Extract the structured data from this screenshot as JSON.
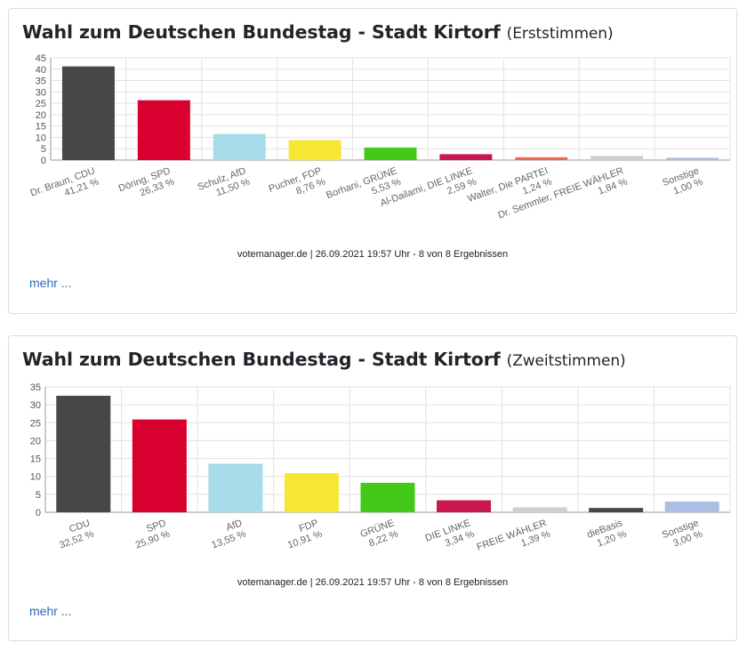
{
  "charts": [
    {
      "title_main": "Wahl zum Deutschen Bundestag - Stadt Kirtorf",
      "title_sub": "(Erststimmen)",
      "footer": "votemanager.de | 26.09.2021 19:57 Uhr - 8 von 8 Ergebnissen",
      "more": "mehr ...",
      "chart_data": {
        "type": "bar",
        "title": "Wahl zum Deutschen Bundestag - Stadt Kirtorf (Erststimmen)",
        "ylim": [
          0,
          45
        ],
        "yticks": [
          0,
          5,
          10,
          15,
          20,
          25,
          30,
          35,
          40,
          45
        ],
        "grid": true,
        "categories": [
          "Dr. Braun, CDU",
          "Döring, SPD",
          "Schulz, AfD",
          "Pucher, FDP",
          "Borhani, GRÜNE",
          "Al-Dailami, DIE LINKE",
          "Walter, Die PARTEI",
          "Dr. Semmler, FREIE WÄHLER",
          "Sonstige"
        ],
        "value_labels": [
          "41,21 %",
          "26,33 %",
          "11,50 %",
          "8,76 %",
          "5,53 %",
          "2,59 %",
          "1,24 %",
          "1,84 %",
          "1,00 %"
        ],
        "values": [
          41.21,
          26.33,
          11.5,
          8.76,
          5.53,
          2.59,
          1.24,
          1.84,
          1.0
        ],
        "colors": [
          "#474747",
          "#d8002f",
          "#a8dcea",
          "#f7e634",
          "#43c917",
          "#c8184e",
          "#f06a51",
          "#cfcfcf",
          "#aebde3"
        ]
      }
    },
    {
      "title_main": "Wahl zum Deutschen Bundestag - Stadt Kirtorf",
      "title_sub": "(Zweitstimmen)",
      "footer": "votemanager.de | 26.09.2021 19:57 Uhr - 8 von 8 Ergebnissen",
      "more": "mehr ...",
      "chart_data": {
        "type": "bar",
        "title": "Wahl zum Deutschen Bundestag - Stadt Kirtorf (Zweitstimmen)",
        "ylim": [
          0,
          35
        ],
        "yticks": [
          0,
          5,
          10,
          15,
          20,
          25,
          30,
          35
        ],
        "grid": true,
        "categories": [
          "CDU",
          "SPD",
          "AfD",
          "FDP",
          "GRÜNE",
          "DIE LINKE",
          "FREIE WÄHLER",
          "dieBasis",
          "Sonstige"
        ],
        "value_labels": [
          "32,52 %",
          "25,90 %",
          "13,55 %",
          "10,91 %",
          "8,22 %",
          "3,34 %",
          "1,39 %",
          "1,20 %",
          "3,00 %"
        ],
        "values": [
          32.52,
          25.9,
          13.55,
          10.91,
          8.22,
          3.34,
          1.39,
          1.2,
          3.0
        ],
        "colors": [
          "#474747",
          "#d8002f",
          "#a8dcea",
          "#f7e634",
          "#43c917",
          "#c8184e",
          "#cfcfcf",
          "#474747",
          "#aebde3"
        ]
      }
    }
  ]
}
